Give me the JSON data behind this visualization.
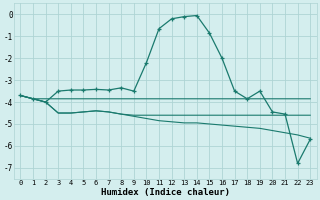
{
  "x": [
    0,
    1,
    2,
    3,
    4,
    5,
    6,
    7,
    8,
    9,
    10,
    11,
    12,
    13,
    14,
    15,
    16,
    17,
    18,
    19,
    20,
    21,
    22,
    23
  ],
  "line_main": [
    -3.7,
    -3.85,
    -4.0,
    -3.5,
    -3.45,
    -3.45,
    -3.42,
    -3.45,
    -3.35,
    -3.5,
    -2.2,
    -0.65,
    -0.2,
    -0.1,
    -0.05,
    -0.85,
    -2.0,
    -3.5,
    -3.85,
    -3.5,
    -4.45,
    -4.55,
    -6.8,
    -5.7
  ],
  "line_flat": [
    -3.7,
    -3.85,
    -3.85,
    -3.85,
    -3.85,
    -3.85,
    -3.85,
    -3.85,
    -3.85,
    -3.85,
    -3.85,
    -3.85,
    -3.85,
    -3.85,
    -3.85,
    -3.85,
    -3.85,
    -3.85,
    -3.85,
    -3.85,
    -3.85,
    -3.85,
    -3.85,
    -3.85
  ],
  "line_mid": [
    -3.7,
    -3.85,
    -4.0,
    -4.5,
    -4.5,
    -4.45,
    -4.4,
    -4.45,
    -4.55,
    -4.6,
    -4.6,
    -4.6,
    -4.6,
    -4.6,
    -4.6,
    -4.6,
    -4.6,
    -4.6,
    -4.6,
    -4.6,
    -4.6,
    -4.6,
    -4.6,
    -4.6
  ],
  "line_low": [
    -3.7,
    -3.85,
    -4.0,
    -4.5,
    -4.5,
    -4.45,
    -4.4,
    -4.45,
    -4.55,
    -4.65,
    -4.75,
    -4.85,
    -4.9,
    -4.95,
    -4.95,
    -5.0,
    -5.05,
    -5.1,
    -5.15,
    -5.2,
    -5.3,
    -5.4,
    -5.5,
    -5.65
  ],
  "bg_color": "#d4eeee",
  "line_color": "#1a7a6e",
  "grid_color": "#aed4d4",
  "xlabel": "Humidex (Indice chaleur)",
  "xlim_min": -0.5,
  "xlim_max": 23.5,
  "ylim_min": -7.5,
  "ylim_max": 0.5,
  "yticks": [
    0,
    -1,
    -2,
    -3,
    -4,
    -5,
    -6,
    -7
  ],
  "xticks": [
    0,
    1,
    2,
    3,
    4,
    5,
    6,
    7,
    8,
    9,
    10,
    11,
    12,
    13,
    14,
    15,
    16,
    17,
    18,
    19,
    20,
    21,
    22,
    23
  ]
}
